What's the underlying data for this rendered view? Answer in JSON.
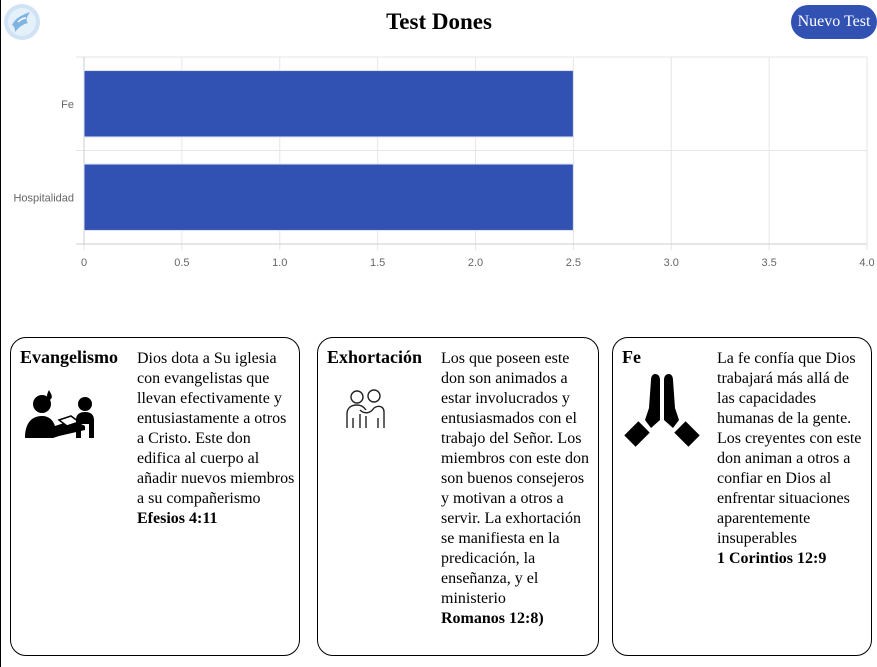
{
  "header": {
    "title": "Test Dones",
    "new_test_label": "Nuevo Test",
    "logo_icon": "dove-icon"
  },
  "chart_data": {
    "type": "bar",
    "orientation": "horizontal",
    "categories": [
      "Fe",
      "Hospitalidad"
    ],
    "values": [
      2.5,
      2.5
    ],
    "color": "#3152b3",
    "xlim": [
      0,
      4.0
    ],
    "xticks": [
      "0",
      "0.5",
      "1.0",
      "1.5",
      "2.0",
      "2.5",
      "3.0",
      "3.5",
      "4.0"
    ],
    "title": "",
    "xlabel": "",
    "ylabel": "",
    "grid": true
  },
  "cards": [
    {
      "title": "Evangelismo",
      "icon": "people-reading-book-icon",
      "text": "Dios dota a Su iglesia con evangelistas que llevan efectivamente y entusiastamente a otros a Cristo. Este don edifica al cuerpo al añadir nuevos miembros a su compañerismo",
      "reference": "Efesios 4:11"
    },
    {
      "title": "Exhortación",
      "icon": "people-embrace-icon",
      "text": "Los que poseen este don son animados a estar involucrados y entusiasmados con el trabajo del Señor. Los miembros con este don son buenos consejeros y motivan a otros a servir. La exhortación se manifiesta en la predicación, la enseñanza, y el ministerio",
      "reference": "Romanos 12:8)"
    },
    {
      "title": "Fe",
      "icon": "praying-hands-icon",
      "text": "La fe confía que Dios trabajará más allá de las capacidades humanas de la gente. Los creyentes con este don animan a otros a confiar en Dios al enfrentar situaciones aparentemente insuperables",
      "reference": "1 Corintios 12:9"
    }
  ]
}
